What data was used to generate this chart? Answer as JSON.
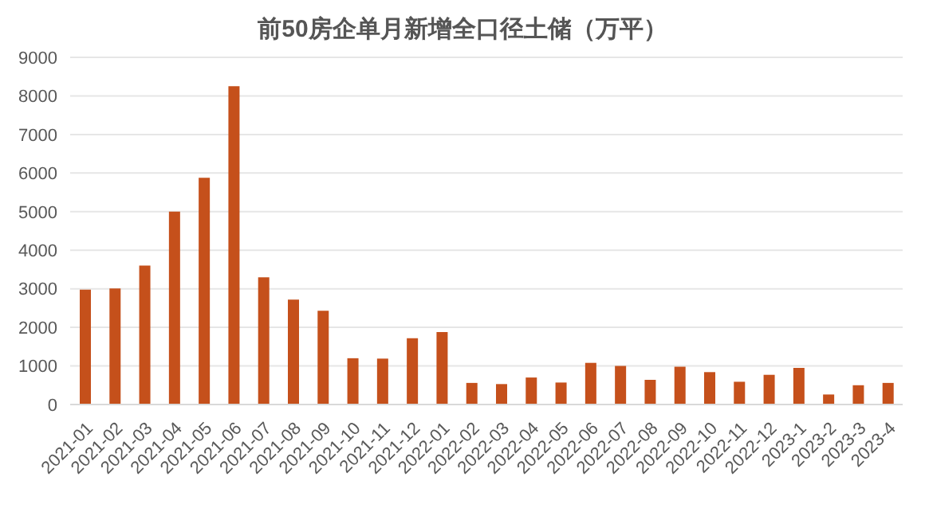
{
  "chart_data": {
    "type": "bar",
    "title": "前50房企单月新增全口径土储（万平）",
    "categories": [
      "2021-01",
      "2021-02",
      "2021-03",
      "2021-04",
      "2021-05",
      "2021-06",
      "2021-07",
      "2021-08",
      "2021-09",
      "2021-10",
      "2021-11",
      "2021-12",
      "2022-01",
      "2022-02",
      "2022-03",
      "2022-04",
      "2022-05",
      "2022-06",
      "2022-07",
      "2022-08",
      "2022-09",
      "2022-10",
      "2022-11",
      "2022-12",
      "2023-1",
      "2023-2",
      "2023-3",
      "2023-4"
    ],
    "values": [
      2980,
      3010,
      3600,
      5000,
      5880,
      8250,
      3300,
      2720,
      2430,
      1200,
      1190,
      1720,
      1880,
      560,
      530,
      700,
      570,
      1080,
      1000,
      640,
      980,
      840,
      590,
      770,
      950,
      260,
      500,
      560
    ],
    "color": "#c5501b",
    "ylim": [
      0,
      9000
    ],
    "yticks": [
      0,
      1000,
      2000,
      3000,
      4000,
      5000,
      6000,
      7000,
      8000,
      9000
    ],
    "grid": "y"
  }
}
